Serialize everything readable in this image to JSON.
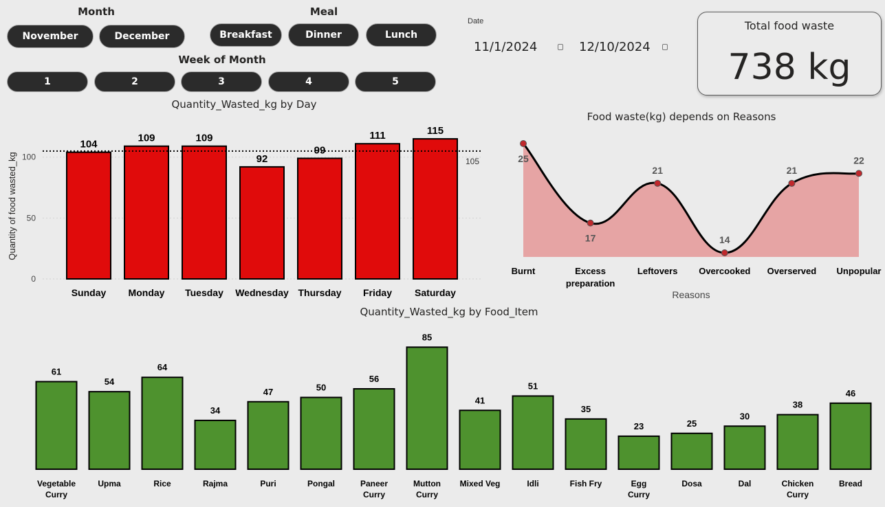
{
  "filters": {
    "month": {
      "title": "Month",
      "options": [
        "November",
        "December"
      ]
    },
    "meal": {
      "title": "Meal",
      "options": [
        "Breakfast",
        "Dinner",
        "Lunch"
      ]
    },
    "week": {
      "title": "Week of Month",
      "options": [
        "1",
        "2",
        "3",
        "4",
        "5"
      ]
    },
    "date": {
      "label": "Date",
      "start": "11/1/2024",
      "end": "12/10/2024"
    }
  },
  "kpi": {
    "title": "Total food waste",
    "value": "738 kg"
  },
  "colors": {
    "bar_day": "#e00b0b",
    "bar_food": "#4e922e",
    "area_fill": "#e6a4a4",
    "point": "#c0282c"
  },
  "chart_data": [
    {
      "type": "bar",
      "title": "Quantity_Wasted_kg by Day",
      "ylabel": "Quantity of food wasted_kg",
      "categories": [
        "Sunday",
        "Monday",
        "Tuesday",
        "Wednesday",
        "Thursday",
        "Friday",
        "Saturday"
      ],
      "values": [
        104,
        109,
        109,
        92,
        99,
        111,
        115
      ],
      "yticks": [
        0,
        50,
        100
      ],
      "ylim": [
        0,
        115
      ],
      "average_line": {
        "value": 105,
        "label": "105"
      },
      "grid": true
    },
    {
      "type": "area",
      "title": "Food waste(kg) depends on Reasons",
      "xlabel": "Reasons",
      "categories": [
        "Burnt",
        "Excess preparation",
        "Leftovers",
        "Overcooked",
        "Overserved",
        "Unpopular"
      ],
      "values": [
        25,
        17,
        21,
        14,
        21,
        22
      ],
      "ylim": [
        14,
        25
      ]
    },
    {
      "type": "bar",
      "title": "Quantity_Wasted_kg by Food_Item",
      "categories": [
        "Vegetable Curry",
        "Upma",
        "Rice",
        "Rajma",
        "Puri",
        "Pongal",
        "Paneer Curry",
        "Mutton Curry",
        "Mixed Veg",
        "Idli",
        "Fish Fry",
        "Egg Curry",
        "Dosa",
        "Dal",
        "Chicken Curry",
        "Bread"
      ],
      "values": [
        61,
        54,
        64,
        34,
        47,
        50,
        56,
        85,
        41,
        51,
        35,
        23,
        25,
        30,
        38,
        46
      ],
      "ylim": [
        0,
        85
      ]
    }
  ]
}
